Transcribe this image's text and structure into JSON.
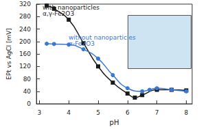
{
  "chart_data": {
    "type": "line",
    "xlabel": "pH",
    "ylabel": "EPt vs AgCl [mV]",
    "xlim": [
      2.9,
      8.2
    ],
    "xticks": [
      3,
      4,
      5,
      6,
      7,
      8
    ],
    "ylim": [
      0,
      320
    ],
    "yticks": [
      0,
      40,
      80,
      120,
      160,
      200,
      240,
      280,
      320
    ],
    "grid": false,
    "series": [
      {
        "name": "with nanoparticles\nα,γ-Fe2O3",
        "color": "#1a1a1a",
        "marker": "square",
        "line_style": "smooth",
        "x": [
          3.25,
          3.5,
          4.0,
          4.5,
          5.0,
          5.5,
          6.0,
          6.25,
          6.5,
          7.0,
          7.5,
          8.0
        ],
        "values": [
          315,
          305,
          270,
          195,
          120,
          68,
          33,
          20,
          28,
          45,
          45,
          43
        ]
      },
      {
        "name": "without nanoparticles\nα-Fe2O3",
        "color": "#3a78d8",
        "marker": "circle",
        "line_style": "smooth",
        "x": [
          3.25,
          3.5,
          4.0,
          4.5,
          5.0,
          5.5,
          6.0,
          6.5,
          6.75,
          7.0,
          7.5,
          8.0
        ],
        "values": [
          193,
          192,
          190,
          175,
          145,
          92,
          50,
          40,
          45,
          50,
          45,
          40
        ]
      }
    ]
  }
}
